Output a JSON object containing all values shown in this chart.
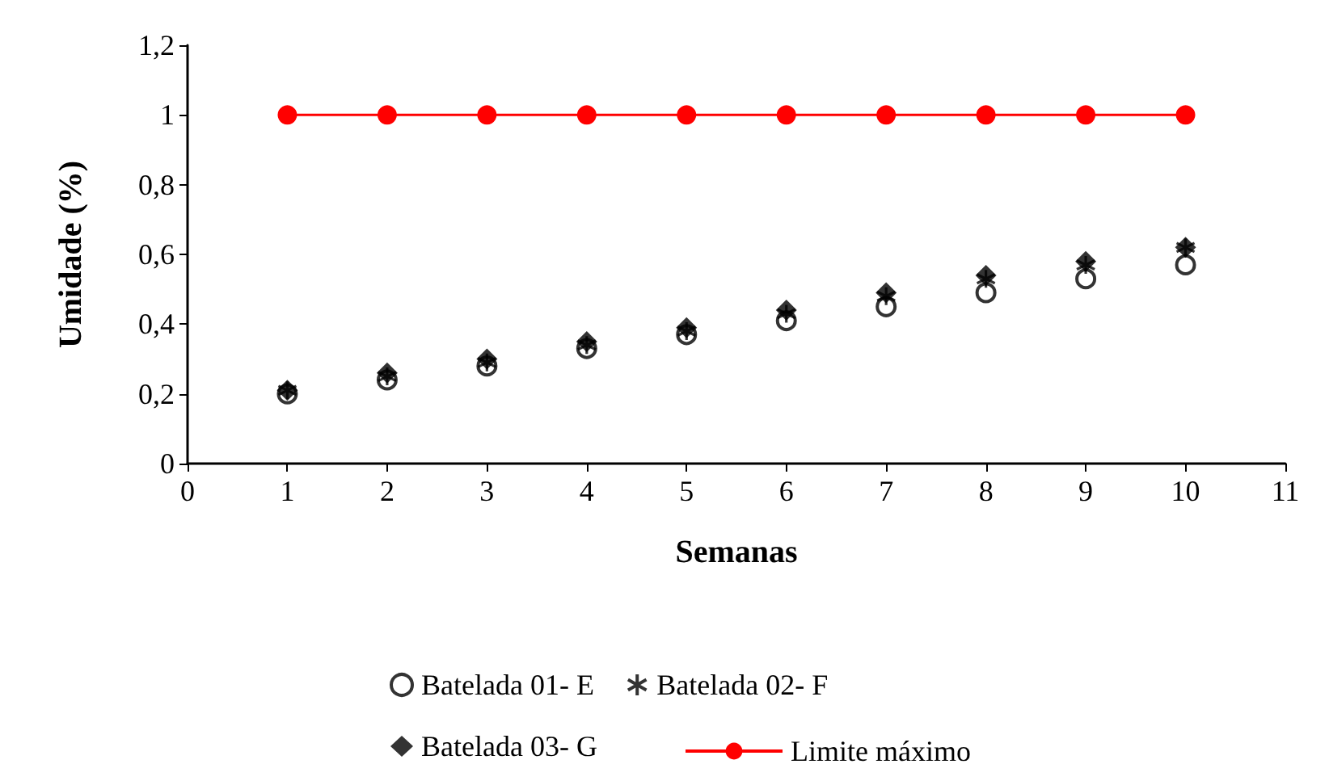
{
  "chart_data": {
    "type": "scatter",
    "xlabel": "Semanas",
    "ylabel": "Umidade (%)",
    "x": [
      1,
      2,
      3,
      4,
      5,
      6,
      7,
      8,
      9,
      10
    ],
    "series": [
      {
        "name": "Batelada 01- E",
        "color": "#000000",
        "marker": "circle",
        "values": [
          0.2,
          0.24,
          0.28,
          0.33,
          0.37,
          0.41,
          0.45,
          0.49,
          0.53,
          0.57
        ]
      },
      {
        "name": "Batelada 02- F",
        "color": "#000000",
        "marker": "cross",
        "values": [
          0.21,
          0.25,
          0.29,
          0.34,
          0.38,
          0.43,
          0.48,
          0.53,
          0.57,
          0.62
        ]
      },
      {
        "name": "Batelada 03- G",
        "color": "#000000",
        "marker": "diamond",
        "values": [
          0.21,
          0.26,
          0.3,
          0.35,
          0.39,
          0.44,
          0.49,
          0.54,
          0.58,
          0.62
        ]
      },
      {
        "name": "Limite máximo",
        "type": "line",
        "color": "#ff0000",
        "marker": "circle",
        "line_style": "solid",
        "values": [
          1,
          1,
          1,
          1,
          1,
          1,
          1,
          1,
          1,
          1
        ]
      }
    ],
    "xlim": [
      0,
      11
    ],
    "xticks": [
      0,
      1,
      2,
      3,
      4,
      5,
      6,
      7,
      8,
      9,
      10,
      11
    ],
    "ylim": [
      0,
      1.2
    ],
    "yticks": [
      0,
      {
        "value": 0.2,
        "label": "0,2"
      },
      {
        "value": 0.4,
        "label": "0,4"
      },
      {
        "value": 0.6,
        "label": "0,6"
      },
      {
        "value": 0.8,
        "label": "0,8"
      },
      1,
      {
        "value": 1.2,
        "label": "1,2"
      }
    ],
    "grid": false,
    "legend": "bottom"
  }
}
